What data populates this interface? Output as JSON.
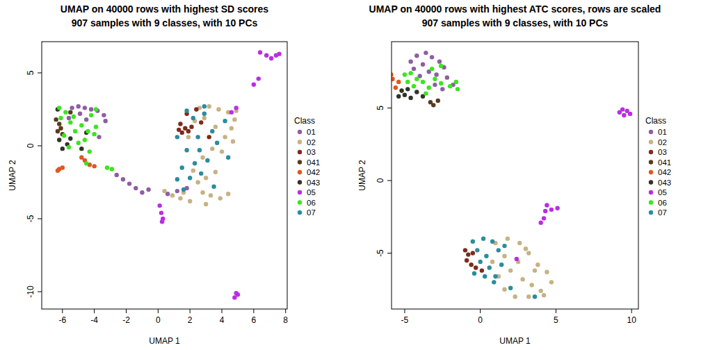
{
  "chart_data": [
    {
      "type": "scatter",
      "title": "UMAP on 40000 rows with highest SD scores",
      "subtitle": "907 samples with 9 classes, with 10 PCs",
      "x_label": "UMAP 1",
      "y_label": "UMAP 2",
      "legend_title": "Class",
      "legend": "right",
      "marker": "circle",
      "xlim": [
        -7.3,
        8.1
      ],
      "ylim": [
        -11.19,
        7.14
      ],
      "xticks": [
        -6,
        -4,
        -2,
        0,
        2,
        4,
        6,
        8
      ],
      "yticks": [
        -10,
        -5,
        0,
        5
      ],
      "series": [
        {
          "name": "01",
          "color": "#8e5ea2",
          "x": [
            -5.4,
            -5.0,
            -4.6,
            -4.2,
            -3.8,
            -3.4,
            -3.3,
            -4.9,
            -5.6,
            -4.5,
            -2.6,
            -2.2,
            -1.8,
            -1.4,
            -1.0,
            -0.6,
            0.6,
            1.2,
            1.8,
            -3.7
          ],
          "values": [
            2.6,
            2.7,
            2.6,
            2.5,
            2.4,
            2.1,
            1.7,
            2.2,
            1.9,
            1.8,
            -2.0,
            -2.3,
            -2.6,
            -2.9,
            -3.2,
            -3.0,
            -3.3,
            -3.1,
            -2.9,
            0.6
          ]
        },
        {
          "name": "02",
          "color": "#c6b283",
          "x": [
            2.6,
            3.2,
            3.8,
            4.4,
            4.8,
            4.6,
            4.2,
            4.7,
            3.6,
            2.9,
            3.4,
            2.8,
            4.0,
            3.6,
            2.5,
            3.0,
            3.3,
            3.9,
            4.4,
            2.8,
            2.0,
            1.4,
            0.9,
            0.4,
            1.6,
            2.2,
            1.9,
            2.3,
            4.9,
            3.0
          ],
          "values": [
            2.6,
            2.7,
            2.5,
            2.3,
            1.8,
            1.2,
            0.6,
            0.3,
            1.3,
            1.9,
            -0.2,
            -0.8,
            -0.4,
            -1.8,
            -2.5,
            -2.2,
            -3.4,
            -3.6,
            -3.3,
            -3.2,
            -3.8,
            -3.6,
            -3.4,
            -3.1,
            -3.2,
            -1.7,
            0.6,
            1.7,
            2.4,
            -4.0
          ]
        },
        {
          "name": "03",
          "color": "#7d2b1b",
          "x": [
            1.3,
            1.5,
            1.7,
            1.9,
            2.1,
            1.4,
            1.8,
            2.4,
            2.7,
            3.2
          ],
          "values": [
            1.1,
            0.9,
            1.2,
            1.0,
            1.3,
            1.5,
            2.2,
            2.5,
            1.6,
            0.6
          ]
        },
        {
          "name": "041",
          "color": "#5b3a1c",
          "x": [
            -6.3,
            -6.2,
            -6.4,
            -6.1,
            -5.5,
            -6.0
          ],
          "values": [
            1.0,
            1.5,
            1.8,
            1.2,
            2.3,
            0.8
          ]
        },
        {
          "name": "042",
          "color": "#e0571f",
          "x": [
            -6.2,
            -6.0,
            -6.3,
            -4.6,
            -4.3,
            -4.0,
            -4.8
          ],
          "values": [
            -1.6,
            -1.5,
            -1.7,
            -1.0,
            -1.3,
            -1.4,
            -0.8
          ]
        },
        {
          "name": "043",
          "color": "#2f3526",
          "x": [
            -6.3,
            -6.0,
            -5.7,
            -4.8,
            -5.5,
            -6.2,
            -4.5
          ],
          "values": [
            2.5,
            -0.2,
            0.1,
            -0.2,
            0.5,
            0.4,
            0.9
          ]
        },
        {
          "name": "05",
          "color": "#b92ee3",
          "x": [
            6.4,
            6.8,
            7.1,
            7.4,
            7.6,
            6.3,
            6.0,
            4.9,
            4.6,
            0.1,
            0.2,
            0.3,
            0.25,
            4.8,
            5.0,
            4.9
          ],
          "values": [
            6.4,
            6.2,
            6.0,
            6.2,
            6.3,
            4.6,
            4.2,
            2.6,
            2.3,
            -4.1,
            -4.6,
            -5.0,
            -5.2,
            -10.4,
            -10.2,
            -10.1
          ]
        },
        {
          "name": "06",
          "color": "#3ae61c",
          "x": [
            -6.2,
            -5.8,
            -5.5,
            -5.2,
            -4.8,
            -4.4,
            -4.0,
            -4.6,
            -5.0,
            -5.3,
            -4.2,
            -3.9,
            -5.6,
            -4.3,
            -4.5,
            -3.2,
            -2.9,
            -5.9,
            -6.1,
            -3.9
          ],
          "values": [
            2.6,
            2.3,
            1.6,
            1.0,
            1.4,
            1.0,
            0.8,
            0.4,
            0.2,
            2.0,
            2.1,
            1.3,
            -0.1,
            -0.4,
            -1.2,
            -1.5,
            -1.6,
            0.7,
            1.9,
            2.5
          ]
        },
        {
          "name": "07",
          "color": "#2a8c9e",
          "x": [
            1.8,
            2.2,
            2.9,
            3.4,
            2.5,
            1.8,
            2.6,
            3.1,
            2.3,
            1.5,
            2.0,
            1.2,
            2.7,
            3.7,
            4.2,
            1.2,
            1.6,
            3.5,
            2.9,
            4.4
          ],
          "values": [
            2.4,
            1.9,
            2.2,
            1.0,
            0.6,
            -0.3,
            -0.3,
            -1.0,
            -1.2,
            -1.5,
            -2.2,
            -2.3,
            -1.9,
            0.2,
            1.7,
            0.6,
            -3.0,
            -2.8,
            2.7,
            -0.8
          ]
        }
      ]
    },
    {
      "type": "scatter",
      "title": "UMAP on 40000 rows with highest ATC scores, rows are scaled",
      "subtitle": "907 samples with 9 classes, with 10 PCs",
      "x_label": "UMAP 1",
      "y_label": "UMAP 2",
      "legend_title": "Class",
      "legend": "right",
      "marker": "circle",
      "xlim": [
        -5.87,
        10.45
      ],
      "ylim": [
        -8.85,
        9.57
      ],
      "xticks": [
        -5,
        0,
        5,
        10
      ],
      "yticks": [
        -5,
        0,
        5
      ],
      "series": [
        {
          "name": "01",
          "color": "#8e5ea2",
          "x": [
            -4.2,
            -3.6,
            -3.2,
            -2.7,
            -2.4,
            -3.8,
            -4.4,
            -2.9,
            -2.2,
            -3.4,
            -4.0,
            -3.0,
            -2.5,
            -1.8,
            -4.6
          ],
          "values": [
            8.6,
            8.8,
            8.5,
            8.2,
            7.8,
            8.0,
            7.7,
            7.3,
            7.1,
            7.5,
            7.2,
            6.6,
            6.3,
            6.6,
            8.2
          ]
        },
        {
          "name": "02",
          "color": "#c6b283",
          "x": [
            1.0,
            1.8,
            2.6,
            3.2,
            3.8,
            4.4,
            4.7,
            4.0,
            3.2,
            2.3,
            1.6,
            1.2,
            2.0,
            2.8,
            3.4,
            3.6,
            2.5,
            1.6,
            4.2,
            0.8,
            3.0
          ],
          "values": [
            -4.3,
            -4.0,
            -4.3,
            -5.0,
            -5.8,
            -6.3,
            -7.0,
            -7.6,
            -8.0,
            -8.0,
            -7.5,
            -6.6,
            -6.2,
            -6.8,
            -7.2,
            -6.2,
            -5.6,
            -5.2,
            -7.9,
            -5.6,
            -4.7
          ]
        },
        {
          "name": "03",
          "color": "#7d2b1b",
          "x": [
            -1.0,
            -0.8,
            -0.9,
            -0.6,
            -0.3,
            -0.5,
            0.1
          ],
          "values": [
            -4.8,
            -5.1,
            -5.5,
            -5.8,
            -6.0,
            -5.0,
            -6.2
          ]
        },
        {
          "name": "041",
          "color": "#5b3a1c",
          "x": [
            -3.1,
            -2.8,
            -3.3
          ],
          "values": [
            5.2,
            5.5,
            5.4
          ]
        },
        {
          "name": "042",
          "color": "#e0571f",
          "x": [
            -6.2,
            -5.9,
            -6.0,
            -5.6,
            -5.8,
            -6.1,
            -5.4
          ],
          "values": [
            7.5,
            7.3,
            6.6,
            6.4,
            7.0,
            6.9,
            6.8
          ]
        },
        {
          "name": "043",
          "color": "#2f3526",
          "x": [
            -5.4,
            -5.0,
            -4.6,
            -4.2,
            -3.8,
            -5.2,
            -4.8
          ],
          "values": [
            5.8,
            5.9,
            5.7,
            6.1,
            5.8,
            6.2,
            6.3
          ]
        },
        {
          "name": "05",
          "color": "#b92ee3",
          "x": [
            9.2,
            9.4,
            9.7,
            9.9,
            9.5,
            4.4,
            4.3,
            4.7,
            5.1,
            4.2,
            4.0,
            2.4
          ],
          "values": [
            4.7,
            4.9,
            4.8,
            4.6,
            4.5,
            -1.7,
            -2.1,
            -2.0,
            -1.9,
            -2.6,
            -2.9,
            -5.4
          ]
        },
        {
          "name": "06",
          "color": "#3ae61c",
          "x": [
            -5.0,
            -4.6,
            -4.2,
            -3.8,
            -3.4,
            -3.0,
            -2.6,
            -2.0,
            -1.5,
            -1.6,
            -4.4,
            -3.6,
            -4.8,
            -3.2,
            -2.6
          ],
          "values": [
            7.3,
            7.4,
            7.0,
            6.8,
            6.4,
            7.0,
            6.7,
            6.5,
            6.3,
            6.8,
            6.5,
            6.0,
            6.8,
            7.7,
            7.9
          ]
        },
        {
          "name": "07",
          "color": "#2a8c9e",
          "x": [
            -0.5,
            0.2,
            0.8,
            -0.2,
            0.4,
            1.2,
            0.0,
            0.6,
            1.0,
            0.3,
            -0.4,
            1.4,
            0.9,
            2.0,
            1.6,
            3.6
          ],
          "values": [
            -4.2,
            -4.0,
            -4.2,
            -4.8,
            -5.2,
            -4.8,
            -5.6,
            -6.0,
            -6.6,
            -6.6,
            -6.4,
            -5.8,
            -7.0,
            -7.4,
            -4.5,
            -8.0
          ]
        }
      ]
    }
  ]
}
